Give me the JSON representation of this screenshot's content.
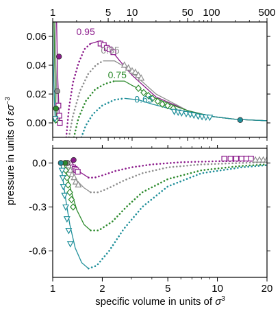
{
  "figure": {
    "xlabel_prefix": "specific volume in units of ",
    "xlabel_sym": "σ",
    "xlabel_exp": "3",
    "ylabel_prefix": "pressure in units of ",
    "ylabel_sym": "εσ",
    "ylabel_exp": "−3",
    "colors": {
      "0.95": "#8B1A8B",
      "0.85": "#8E8E8E",
      "0.75": "#2E8B2E",
      "0.65": "#1F8F9A"
    }
  },
  "chart_data": [
    {
      "type": "line",
      "panel": "top",
      "title": "",
      "x_scale": "log",
      "xlim": [
        1,
        500
      ],
      "ylim": [
        -0.01,
        0.07
      ],
      "xticks": [
        1,
        5,
        10,
        50,
        100,
        500
      ],
      "xtick_labels": [
        "1",
        "5",
        "10",
        "50",
        "100",
        "500"
      ],
      "yticks": [
        0.0,
        0.02,
        0.04,
        0.06
      ],
      "ytick_labels": [
        "0.00",
        "0.02",
        "0.04",
        "0.06"
      ],
      "grid": false,
      "series": [
        {
          "name": "0.95",
          "label_at": [
            2.6,
            0.061
          ],
          "liquid_branch": [
            [
              1.12,
              0.07
            ],
            [
              1.15,
              0.035
            ],
            [
              1.19,
              0.014
            ],
            [
              1.22,
              0.0
            ]
          ],
          "unstable_dotted": [
            [
              1.48,
              -0.01
            ],
            [
              1.6,
              0.01
            ],
            [
              1.8,
              0.028
            ],
            [
              2.1,
              0.041
            ],
            [
              2.5,
              0.051
            ],
            [
              3.0,
              0.055
            ]
          ],
          "gas_branch": [
            [
              3.0,
              0.055
            ],
            [
              4,
              0.057
            ],
            [
              5,
              0.053
            ],
            [
              7,
              0.043
            ],
            [
              10,
              0.033
            ],
            [
              20,
              0.018
            ],
            [
              50,
              0.0085
            ],
            [
              100,
              0.0045
            ],
            [
              200,
              0.0025
            ],
            [
              500,
              0.0015
            ]
          ],
          "squares": [
            [
              1.18,
              0.012
            ],
            [
              1.21,
              0.005
            ],
            [
              1.23,
              0.0
            ],
            [
              4.0,
              0.055
            ],
            [
              4.4,
              0.054
            ],
            [
              4.8,
              0.052
            ],
            [
              5.2,
              0.051
            ],
            [
              5.8,
              0.049
            ]
          ],
          "circles": [
            [
              1.2,
              0.046
            ]
          ]
        },
        {
          "name": "0.85",
          "label_at": [
            5.3,
            0.048
          ],
          "liquid_branch": [
            [
              1.08,
              0.07
            ],
            [
              1.1,
              0.04
            ],
            [
              1.13,
              0.018
            ],
            [
              1.16,
              0.0
            ]
          ],
          "unstable_dotted": [
            [
              1.6,
              -0.01
            ],
            [
              1.8,
              0.005
            ],
            [
              2.2,
              0.022
            ],
            [
              2.8,
              0.034
            ],
            [
              3.5,
              0.04
            ],
            [
              4.3,
              0.043
            ]
          ],
          "gas_branch": [
            [
              4.3,
              0.043
            ],
            [
              6,
              0.043
            ],
            [
              8,
              0.039
            ],
            [
              12,
              0.031
            ],
            [
              20,
              0.02
            ],
            [
              50,
              0.0085
            ],
            [
              100,
              0.0045
            ],
            [
              200,
              0.0025
            ],
            [
              500,
              0.0015
            ]
          ],
          "triangles": [
            [
              8.0,
              0.04
            ],
            [
              9.0,
              0.038
            ],
            [
              10.0,
              0.036
            ],
            [
              11.0,
              0.035
            ],
            [
              12.0,
              0.033
            ],
            [
              13.0,
              0.031
            ]
          ],
          "circles": [
            [
              1.14,
              0.022
            ]
          ]
        },
        {
          "name": "0.75",
          "label_at": [
            6.5,
            0.031
          ],
          "liquid_branch": [
            [
              1.04,
              0.07
            ],
            [
              1.06,
              0.04
            ],
            [
              1.09,
              0.015
            ],
            [
              1.12,
              0.0
            ]
          ],
          "unstable_dotted": [
            [
              1.85,
              -0.01
            ],
            [
              2.1,
              0.003
            ],
            [
              2.6,
              0.015
            ],
            [
              3.4,
              0.023
            ],
            [
              4.5,
              0.027
            ],
            [
              6.0,
              0.029
            ]
          ],
          "gas_branch": [
            [
              6.0,
              0.029
            ],
            [
              8,
              0.029
            ],
            [
              10,
              0.026
            ],
            [
              15,
              0.021
            ],
            [
              20,
              0.017
            ],
            [
              30,
              0.013
            ],
            [
              50,
              0.0085
            ],
            [
              100,
              0.0045
            ],
            [
              200,
              0.0025
            ],
            [
              500,
              0.0015
            ]
          ],
          "diamonds": [
            [
              1.09,
              0.002
            ],
            [
              12.0,
              0.024
            ],
            [
              14.0,
              0.021
            ],
            [
              16.0,
              0.019
            ],
            [
              18.0,
              0.017
            ],
            [
              21.0,
              0.015
            ],
            [
              24.0,
              0.013
            ],
            [
              28.0,
              0.012
            ],
            [
              33.0,
              0.01
            ]
          ],
          "circles": [
            [
              1.1,
              0.01
            ]
          ]
        },
        {
          "name": "0.65",
          "label_at": [
            14.0,
            0.014
          ],
          "liquid_branch": [
            [
              1.0,
              0.07
            ],
            [
              1.02,
              0.04
            ],
            [
              1.05,
              0.015
            ],
            [
              1.08,
              0.0
            ]
          ],
          "unstable_dotted": [
            [
              2.3,
              -0.01
            ],
            [
              2.6,
              -0.002
            ],
            [
              3.2,
              0.006
            ],
            [
              4.2,
              0.012
            ],
            [
              6.0,
              0.016
            ],
            [
              8.0,
              0.017
            ]
          ],
          "gas_branch": [
            [
              8.0,
              0.017
            ],
            [
              12,
              0.016
            ],
            [
              18,
              0.013
            ],
            [
              25,
              0.011
            ],
            [
              35,
              0.0085
            ],
            [
              50,
              0.0065
            ],
            [
              100,
              0.0045
            ],
            [
              200,
              0.0025
            ],
            [
              500,
              0.0015
            ]
          ],
          "down_triangles": [
            [
              1.07,
              0.003
            ],
            [
              34.0,
              0.008
            ],
            [
              38.0,
              0.0075
            ],
            [
              42.0,
              0.007
            ],
            [
              48.0,
              0.0065
            ],
            [
              54.0,
              0.006
            ],
            [
              60.0,
              0.0055
            ],
            [
              68.0,
              0.0048
            ],
            [
              76.0,
              0.0044
            ],
            [
              85.0,
              0.0041
            ],
            [
              95.0,
              0.004
            ]
          ],
          "circles": [
            [
              230.0,
              0.002
            ]
          ]
        }
      ]
    },
    {
      "type": "line",
      "panel": "bottom",
      "title": "",
      "x_scale": "log",
      "xlim": [
        1,
        20
      ],
      "ylim": [
        -0.78,
        0.1
      ],
      "xticks": [
        1,
        2,
        5,
        10,
        20
      ],
      "xtick_labels": [
        "1",
        "2",
        "5",
        "10",
        "20"
      ],
      "yticks": [
        0.0,
        -0.3,
        -0.6
      ],
      "ytick_labels": [
        "0.0",
        "-0.3",
        "-0.6"
      ],
      "grid": false,
      "series": [
        {
          "name": "0.95",
          "liquid_solid": [
            [
              1.28,
              0.02
            ],
            [
              1.35,
              -0.02
            ],
            [
              1.45,
              -0.06
            ],
            [
              1.55,
              -0.08
            ],
            [
              1.65,
              -0.1
            ]
          ],
          "minimum_dotted": [
            [
              1.65,
              -0.1
            ],
            [
              1.8,
              -0.1
            ],
            [
              2.0,
              -0.085
            ],
            [
              2.4,
              -0.055
            ],
            [
              3.0,
              -0.03
            ],
            [
              4.0,
              -0.01
            ],
            [
              6.0,
              0.005
            ],
            [
              10.0,
              0.012
            ],
            [
              20.0,
              0.015
            ]
          ],
          "squares": [
            [
              1.33,
              -0.03
            ],
            [
              1.36,
              -0.04
            ],
            [
              1.39,
              -0.05
            ],
            [
              1.42,
              -0.06
            ],
            [
              11.0,
              0.03
            ],
            [
              12.0,
              0.03
            ],
            [
              13.0,
              0.03
            ],
            [
              14.0,
              0.03
            ],
            [
              15.0,
              0.03
            ],
            [
              16.0,
              0.03
            ]
          ],
          "circles": [
            [
              1.34,
              0.02
            ]
          ]
        },
        {
          "name": "0.85",
          "liquid_solid": [
            [
              1.22,
              0.01
            ],
            [
              1.3,
              -0.05
            ],
            [
              1.4,
              -0.12
            ],
            [
              1.55,
              -0.17
            ],
            [
              1.7,
              -0.2
            ]
          ],
          "minimum_dotted": [
            [
              1.7,
              -0.2
            ],
            [
              1.9,
              -0.2
            ],
            [
              2.2,
              -0.17
            ],
            [
              2.7,
              -0.12
            ],
            [
              3.5,
              -0.07
            ],
            [
              5.0,
              -0.03
            ],
            [
              8.0,
              -0.01
            ],
            [
              14.0,
              0.0
            ],
            [
              20.0,
              0.005
            ]
          ],
          "triangles": [
            [
              1.25,
              -0.02
            ],
            [
              1.28,
              -0.05
            ],
            [
              1.31,
              -0.08
            ],
            [
              1.35,
              -0.1
            ],
            [
              1.38,
              -0.13
            ],
            [
              1.43,
              -0.15
            ],
            [
              17.0,
              0.02
            ],
            [
              18.0,
              0.02
            ],
            [
              19.0,
              0.02
            ],
            [
              20.0,
              0.02
            ]
          ],
          "circles": [
            [
              1.23,
              0.0
            ]
          ]
        },
        {
          "name": "0.75",
          "liquid_solid": [
            [
              1.17,
              0.0
            ],
            [
              1.22,
              -0.08
            ],
            [
              1.3,
              -0.2
            ],
            [
              1.4,
              -0.32
            ],
            [
              1.55,
              -0.42
            ],
            [
              1.7,
              -0.46
            ]
          ],
          "minimum_dotted": [
            [
              1.7,
              -0.46
            ],
            [
              1.9,
              -0.46
            ],
            [
              2.3,
              -0.4
            ],
            [
              2.8,
              -0.3
            ],
            [
              3.5,
              -0.2
            ],
            [
              5.0,
              -0.11
            ],
            [
              8.0,
              -0.05
            ],
            [
              14.0,
              -0.02
            ],
            [
              20.0,
              -0.01
            ]
          ],
          "diamonds": [
            [
              1.2,
              -0.05
            ],
            [
              1.22,
              -0.1
            ],
            [
              1.24,
              -0.15
            ],
            [
              1.27,
              -0.2
            ],
            [
              1.3,
              -0.25
            ],
            [
              1.33,
              -0.3
            ]
          ],
          "circles": [
            [
              1.19,
              0.0
            ]
          ]
        },
        {
          "name": "0.65",
          "liquid_solid": [
            [
              1.12,
              0.0
            ],
            [
              1.15,
              -0.1
            ],
            [
              1.2,
              -0.25
            ],
            [
              1.27,
              -0.42
            ],
            [
              1.37,
              -0.58
            ],
            [
              1.5,
              -0.68
            ],
            [
              1.65,
              -0.72
            ]
          ],
          "minimum_dotted": [
            [
              1.65,
              -0.72
            ],
            [
              1.85,
              -0.7
            ],
            [
              2.2,
              -0.6
            ],
            [
              2.7,
              -0.45
            ],
            [
              3.5,
              -0.3
            ],
            [
              5.0,
              -0.16
            ],
            [
              8.0,
              -0.07
            ],
            [
              14.0,
              -0.03
            ],
            [
              20.0,
              -0.015
            ]
          ],
          "down_triangles": [
            [
              1.14,
              -0.05
            ],
            [
              1.15,
              -0.1
            ],
            [
              1.16,
              -0.16
            ],
            [
              1.18,
              -0.22
            ],
            [
              1.2,
              -0.3
            ],
            [
              1.22,
              -0.38
            ],
            [
              1.25,
              -0.46
            ],
            [
              1.28,
              -0.55
            ]
          ],
          "circles": [
            [
              1.12,
              0.0
            ]
          ]
        }
      ]
    }
  ]
}
